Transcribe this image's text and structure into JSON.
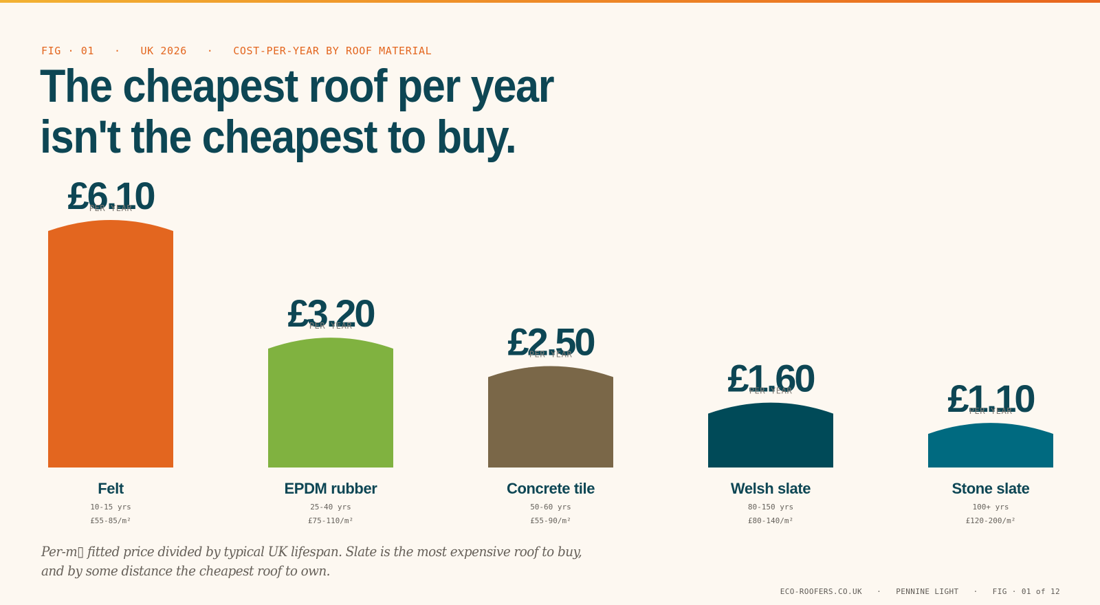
{
  "header": {
    "eyebrow": "FIG · 01   ·   UK 2026   ·   COST-PER-YEAR BY ROOF MATERIAL",
    "title_line1": "The cheapest roof per year",
    "title_line2": "isn't the cheapest to buy."
  },
  "chart_data": {
    "type": "bar",
    "categories": [
      "Felt",
      "EPDM rubber",
      "Concrete tile",
      "Welsh slate",
      "Stone slate"
    ],
    "values": [
      6.1,
      3.2,
      2.5,
      1.6,
      1.1
    ],
    "value_labels": [
      "£6.10",
      "£3.20",
      "£2.50",
      "£1.60",
      "£1.10"
    ],
    "unit_label": "PER YEAR",
    "lifespans": [
      "10-15 yrs",
      "25-40 yrs",
      "50-60 yrs",
      "80-150 yrs",
      "100+ yrs"
    ],
    "prices": [
      "£55-85/m²",
      "£75-110/m²",
      "£55-90/m²",
      "£80-140/m²",
      "£120-200/m²"
    ],
    "colors": [
      "#e3661f",
      "#80b240",
      "#7a6748",
      "#004a58",
      "#006a80"
    ],
    "ylim": [
      0,
      6.1
    ],
    "title": "",
    "xlabel": "",
    "ylabel": "",
    "grid": false,
    "legend": "none"
  },
  "footnote": {
    "line1": "Per-m▯ fitted price divided by typical UK lifespan. Slate is the most expensive roof to buy,",
    "line2": "and by some distance the cheapest roof to own."
  },
  "footer": {
    "text": "ECO-ROOFERS.CO.UK   ·   PENNINE LIGHT   ·   FIG · 01 of 12"
  }
}
